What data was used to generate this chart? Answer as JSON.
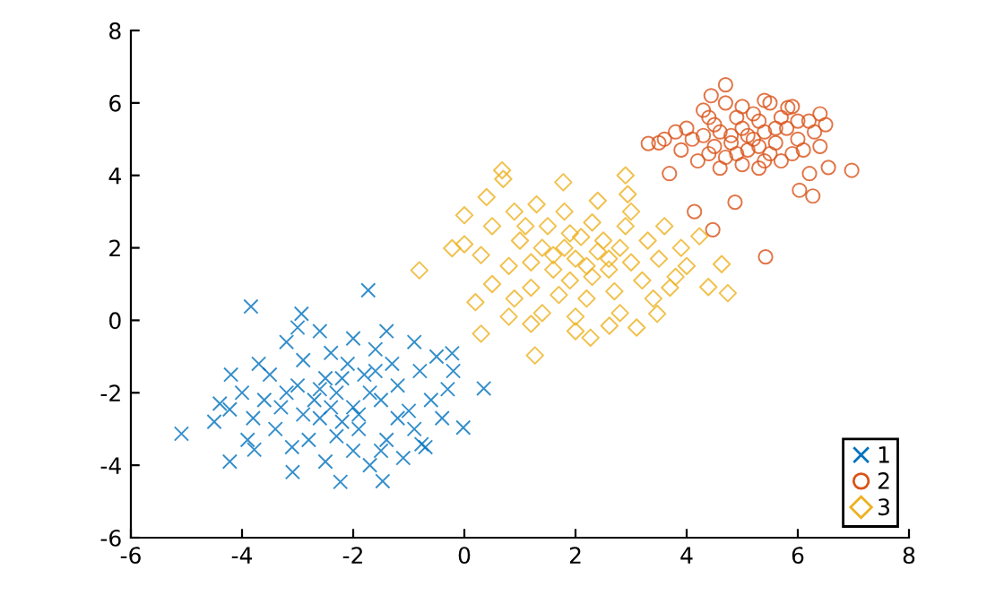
{
  "chart_data": {
    "type": "scatter",
    "xlim": [
      -6,
      8
    ],
    "ylim": [
      -6,
      8
    ],
    "xticks": [
      -6,
      -4,
      -2,
      0,
      2,
      4,
      6,
      8
    ],
    "yticks": [
      -6,
      -4,
      -2,
      0,
      2,
      4,
      6,
      8
    ],
    "grid": false,
    "legend": "bottom right",
    "series": [
      {
        "name": "1",
        "color": "#0072bd",
        "marker": "cross",
        "x": [
          -2.3,
          -2.5,
          -2.0,
          -1.8,
          -2.7,
          -3.0,
          -1.5,
          -2.2,
          -2.6,
          -1.9,
          -1.2,
          -1.0,
          -3.3,
          -3.5,
          -2.9,
          -2.4,
          -1.6,
          -1.3,
          -0.8,
          -0.6,
          -0.9,
          -1.4,
          -2.0,
          -2.8,
          -3.4,
          -3.8,
          -4.0,
          -3.7,
          -3.2,
          -2.6,
          -2.0,
          -1.4,
          -0.9,
          -0.5,
          -0.3,
          -0.4,
          -1.1,
          -1.7,
          -2.5,
          -3.1,
          -2.1,
          -1.7,
          -2.4,
          -2.9,
          -1.2,
          -1.6,
          -3.6,
          -4.2,
          -3.9,
          -4.5,
          -2.2,
          -1.9,
          -2.6,
          -3.2,
          -0.7,
          -1.5,
          -2.3,
          -0.2,
          -4.4,
          -3.0,
          -3.84,
          -1.73,
          -5.09,
          -4.22,
          -4.22,
          -3.09,
          -2.23,
          -1.47,
          -0.77,
          -0.02,
          -0.22,
          0.35,
          -3.78,
          -2.93
        ],
        "values": [
          -2.0,
          -1.6,
          -2.4,
          -1.5,
          -2.2,
          -1.8,
          -2.2,
          -2.8,
          -2.7,
          -3.0,
          -1.8,
          -2.5,
          -2.4,
          -1.5,
          -1.1,
          -0.9,
          -0.8,
          -1.2,
          -1.4,
          -2.2,
          -3.0,
          -3.3,
          -3.6,
          -3.3,
          -3.0,
          -2.7,
          -2.0,
          -1.2,
          -0.6,
          -0.3,
          -0.5,
          -0.3,
          -0.6,
          -1.0,
          -1.9,
          -2.7,
          -3.8,
          -4.0,
          -3.9,
          -3.5,
          -1.2,
          -2.0,
          -2.4,
          -2.6,
          -2.7,
          -1.4,
          -2.2,
          -1.5,
          -3.3,
          -2.8,
          -1.6,
          -2.6,
          -1.9,
          -2.0,
          -3.5,
          -3.6,
          -3.2,
          -1.4,
          -2.3,
          -0.2,
          0.38,
          0.83,
          -3.13,
          -2.46,
          -3.9,
          -4.19,
          -4.46,
          -4.44,
          -3.42,
          -2.96,
          -0.91,
          -1.88,
          -3.57,
          0.18
        ]
      },
      {
        "name": "2",
        "color": "#d95319",
        "marker": "circle",
        "x": [
          4.6,
          4.8,
          5.0,
          5.2,
          5.4,
          5.1,
          4.9,
          5.3,
          5.6,
          4.5,
          4.3,
          4.7,
          5.5,
          5.8,
          6.0,
          5.7,
          4.4,
          4.1,
          3.9,
          4.0,
          4.2,
          4.6,
          5.0,
          5.3,
          5.7,
          6.1,
          6.3,
          6.2,
          5.9,
          5.5,
          5.0,
          4.7,
          4.3,
          3.6,
          3.8,
          4.8,
          5.1,
          5.3,
          4.9,
          5.6,
          4.5,
          5.2,
          5.9,
          6.4,
          3.5,
          4.4,
          5.4,
          6.0,
          6.5,
          6.4,
          4.44,
          5.4,
          5.82,
          6.97,
          6.55,
          6.27,
          6.03,
          4.87,
          4.14,
          4.47,
          3.31,
          3.69,
          6.21,
          5.42,
          4.7
        ],
        "values": [
          5.2,
          4.9,
          5.3,
          5.0,
          5.2,
          4.7,
          5.6,
          5.5,
          4.9,
          4.8,
          5.1,
          4.5,
          4.6,
          5.3,
          5.0,
          5.6,
          5.6,
          5.0,
          4.7,
          5.3,
          4.4,
          4.2,
          4.3,
          4.2,
          4.4,
          4.7,
          5.2,
          5.5,
          5.9,
          6.0,
          5.9,
          6.0,
          5.8,
          5.0,
          5.2,
          5.1,
          5.1,
          4.8,
          4.6,
          5.3,
          5.4,
          5.7,
          4.6,
          4.8,
          4.9,
          4.6,
          4.4,
          5.5,
          5.4,
          5.7,
          6.2,
          6.07,
          5.87,
          4.14,
          4.22,
          3.43,
          3.59,
          3.26,
          3.0,
          2.5,
          4.88,
          4.05,
          4.05,
          1.75,
          6.5
        ]
      },
      {
        "name": "3",
        "color": "#edb120",
        "marker": "diamond",
        "x": [
          2.0,
          1.8,
          2.2,
          1.6,
          2.4,
          1.9,
          2.6,
          1.4,
          2.1,
          2.8,
          3.0,
          1.2,
          1.0,
          0.8,
          1.5,
          2.3,
          2.9,
          3.3,
          3.5,
          3.2,
          2.7,
          2.2,
          1.7,
          1.2,
          0.9,
          0.5,
          0.3,
          0.5,
          0.9,
          1.3,
          1.8,
          2.4,
          3.0,
          3.6,
          3.9,
          3.8,
          3.4,
          2.8,
          2.0,
          1.4,
          0.8,
          0.2,
          1.1,
          2.5,
          1.6,
          2.3,
          1.9,
          2.6,
          0.0,
          0.4,
          0.7,
          1.2,
          3.1,
          2.0,
          3.7,
          4.0,
          -0.81,
          0.68,
          1.78,
          1.27,
          0.3,
          -0.22,
          4.63,
          4.74,
          4.39,
          4.23,
          3.47,
          2.94,
          2.61,
          2.27,
          2.9,
          0.0
        ],
        "values": [
          1.7,
          2.0,
          1.5,
          1.4,
          1.9,
          1.1,
          1.4,
          2.0,
          2.3,
          2.0,
          1.6,
          1.6,
          2.2,
          1.5,
          2.6,
          2.7,
          2.6,
          2.2,
          1.7,
          1.1,
          0.8,
          0.6,
          0.7,
          0.9,
          0.6,
          1.0,
          1.8,
          2.6,
          3.0,
          3.2,
          3.0,
          3.3,
          3.0,
          2.6,
          2.0,
          1.2,
          0.6,
          0.2,
          0.1,
          0.2,
          0.1,
          0.5,
          2.6,
          2.2,
          1.8,
          1.2,
          2.4,
          1.7,
          2.9,
          3.4,
          3.9,
          -0.1,
          -0.2,
          -0.3,
          0.9,
          1.5,
          1.38,
          4.14,
          3.81,
          -0.97,
          -0.37,
          1.99,
          1.55,
          0.75,
          0.92,
          2.32,
          0.18,
          3.48,
          -0.15,
          -0.48,
          4.0,
          2.1
        ]
      }
    ]
  }
}
